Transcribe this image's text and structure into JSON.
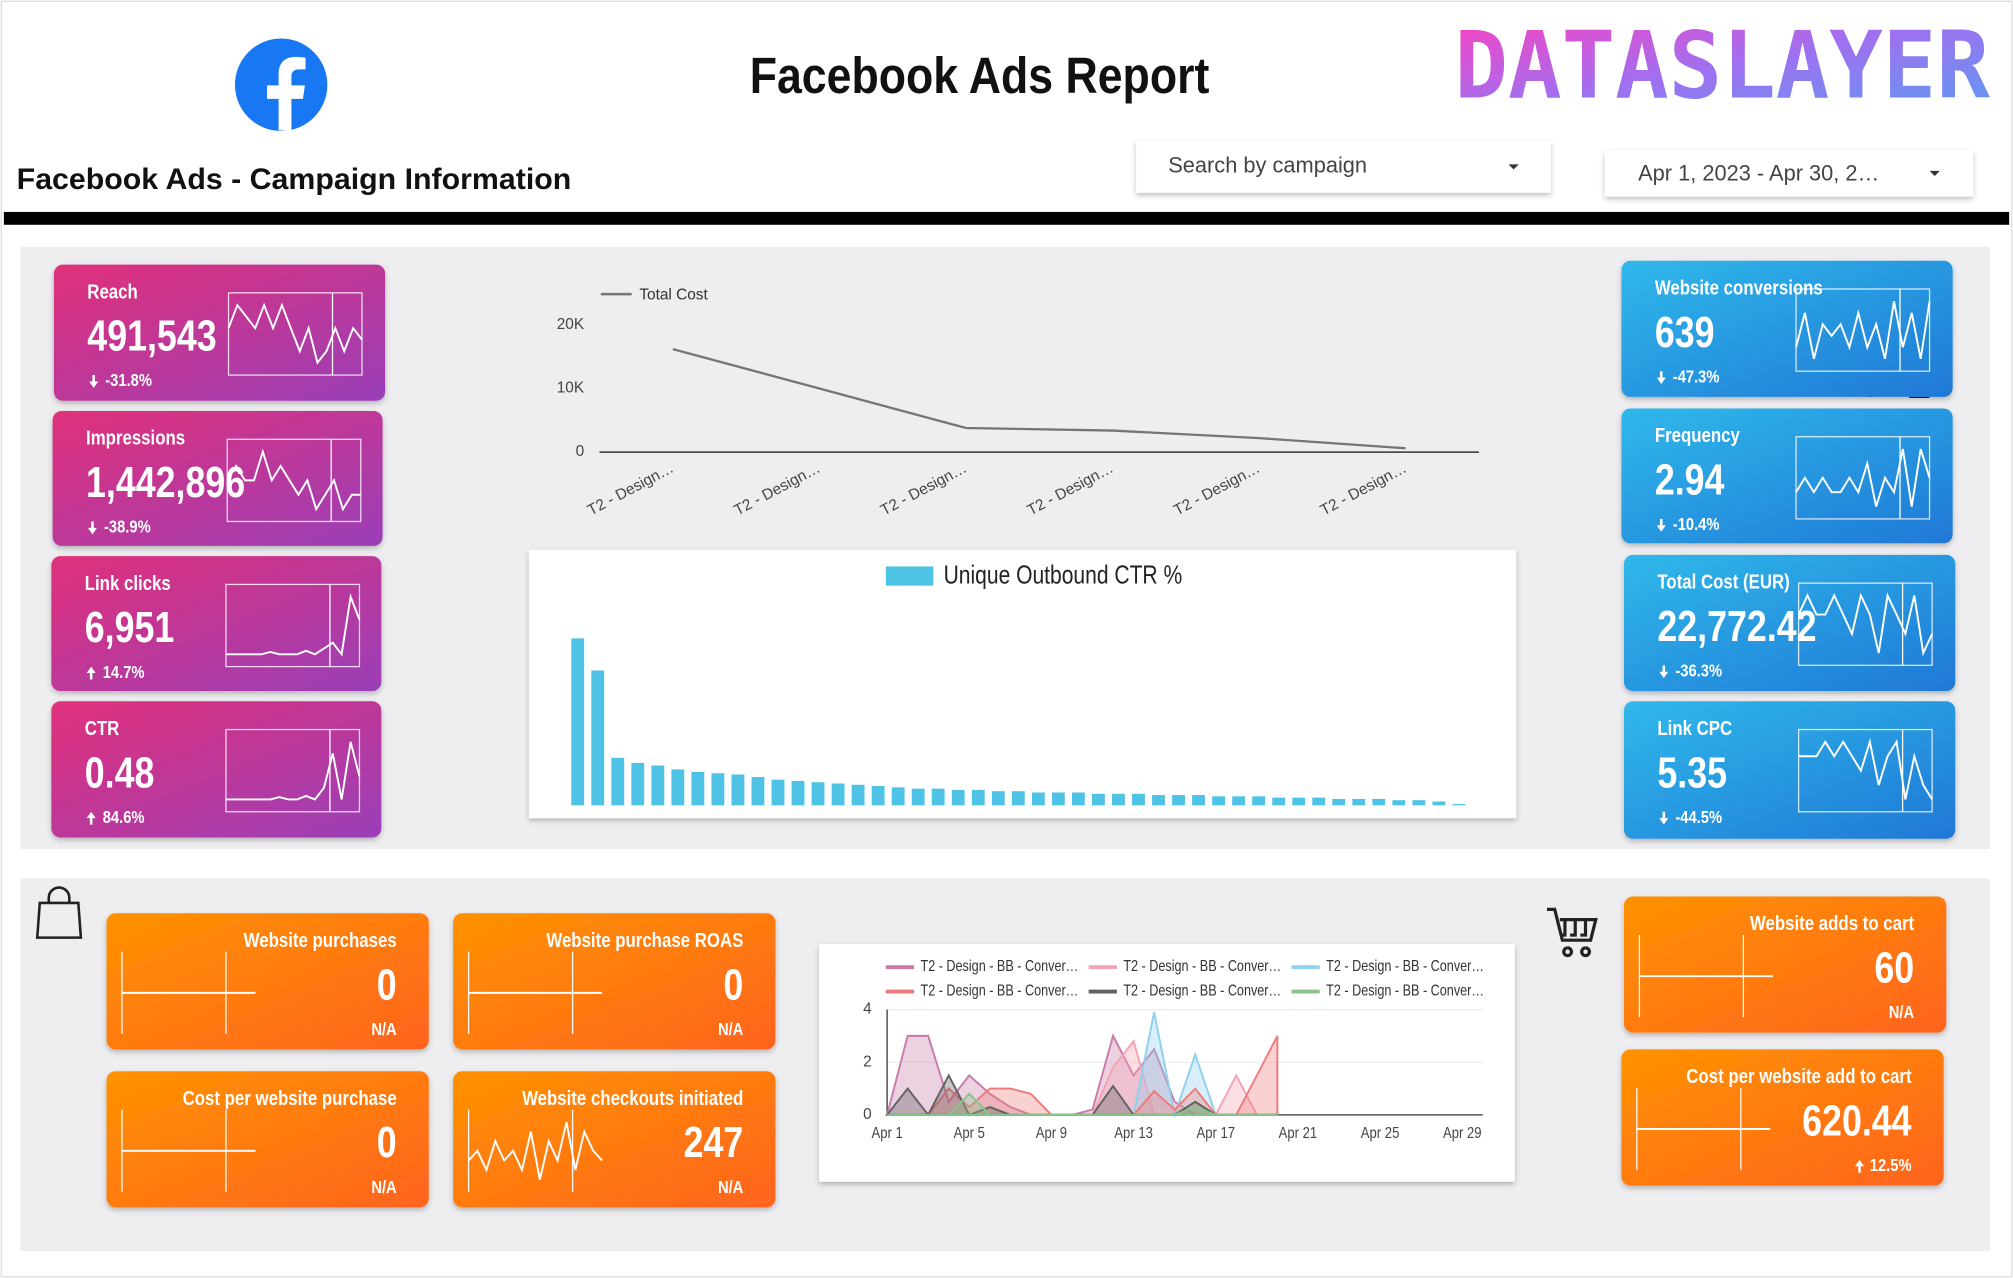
{
  "header": {
    "title": "Facebook Ads Report",
    "brand": "DATASLAYER",
    "subtitle": "Facebook Ads - Campaign Information",
    "campaign_filter": "Search by campaign",
    "date_filter": "Apr 1, 2023 - Apr 30, 2…"
  },
  "kpis": [
    {
      "name": "Reach",
      "value": "491,543",
      "change": "-31.8%",
      "sparkline": [
        5,
        6,
        5.5,
        5,
        6,
        5,
        6,
        5,
        4,
        5,
        3.5,
        4,
        5,
        4,
        5,
        4.5
      ]
    },
    {
      "name": "Impressions",
      "value": "1,442,896",
      "change": "-38.9%",
      "sparkline": [
        5,
        5.5,
        5,
        5,
        6,
        5,
        5.5,
        5,
        4.5,
        5,
        4,
        4.5,
        5,
        4,
        4.5,
        4.5
      ]
    },
    {
      "name": "Link clicks",
      "value": "6,951",
      "change": "14.7%",
      "sparkline": [
        2,
        2,
        2,
        2,
        2,
        2.2,
        2,
        2,
        2,
        2.3,
        2,
        2.5,
        3,
        2,
        7,
        5
      ]
    },
    {
      "name": "CTR",
      "value": "0.48",
      "change": "84.6%",
      "sparkline": [
        2,
        2,
        2,
        2,
        2,
        2,
        2.2,
        2,
        2,
        2.3,
        2,
        3,
        6,
        2,
        7,
        4
      ]
    },
    {
      "name": "Website conversions",
      "value": "639",
      "change": "-47.3%",
      "sparkline": [
        3,
        6,
        2,
        5,
        4,
        5,
        3,
        6,
        3,
        5,
        2,
        7,
        3,
        6,
        2,
        7
      ]
    },
    {
      "name": "Frequency",
      "value": "2.94",
      "change": "-10.4%",
      "sparkline": [
        4,
        5,
        4,
        5,
        4,
        4,
        5,
        4,
        6,
        3,
        5,
        4,
        7,
        3,
        7,
        5
      ]
    },
    {
      "name": "Total Cost (EUR)",
      "value": "22,772.42",
      "change": "-36.3%",
      "sparkline": [
        5,
        6,
        5,
        5,
        6,
        5,
        4,
        6,
        5,
        3,
        6,
        5,
        4,
        6,
        3,
        4
      ]
    },
    {
      "name": "Link CPC",
      "value": "5.35",
      "change": "-44.5%",
      "sparkline": [
        5,
        5,
        5,
        6,
        5,
        6,
        5,
        4,
        6,
        3,
        5,
        6,
        2,
        5,
        3,
        2
      ]
    },
    {
      "name": "Website purchases",
      "value": "0",
      "change": "N/A",
      "sparkline": [
        0,
        0,
        0,
        0,
        0,
        0,
        0,
        0,
        0,
        0,
        0,
        0,
        0,
        0,
        0,
        0
      ]
    },
    {
      "name": "Website purchase ROAS",
      "value": "0",
      "change": "N/A",
      "sparkline": [
        0,
        0,
        0,
        0,
        0,
        0,
        0,
        0,
        0,
        0,
        0,
        0,
        0,
        0,
        0,
        0
      ]
    },
    {
      "name": "Cost per website purchase",
      "value": "0",
      "change": "N/A",
      "sparkline": [
        0,
        0,
        0,
        0,
        0,
        0,
        0,
        0,
        0,
        0,
        0,
        0,
        0,
        0,
        0,
        0
      ]
    },
    {
      "name": "Website checkouts initiated",
      "value": "247",
      "change": "N/A",
      "sparkline": [
        3,
        4,
        2,
        5,
        3,
        4,
        2,
        6,
        1,
        5,
        3,
        7,
        2,
        6,
        4,
        3
      ]
    },
    {
      "name": "Website adds to cart",
      "value": "60",
      "change": "N/A",
      "sparkline": [
        0,
        0,
        0,
        0,
        0,
        0,
        0,
        0,
        0,
        0,
        0,
        0,
        0,
        0,
        0,
        0
      ]
    },
    {
      "name": "Cost per website add to cart",
      "value": "620.44",
      "change": "12.5%",
      "sparkline": [
        0,
        0,
        0,
        0,
        0,
        0,
        0,
        0,
        0,
        0,
        0,
        0,
        0,
        0,
        0,
        0
      ]
    }
  ],
  "chart_data": [
    {
      "type": "line",
      "categories": [
        "T2 - Design…",
        "T2 - Design…",
        "T2 - Design…",
        "T2 - Design…",
        "T2 - Design…",
        "T2 - Design…"
      ],
      "series": [
        {
          "name": "Total Cost",
          "color": "#757575",
          "values": [
            16200,
            10000,
            3800,
            3400,
            2200,
            600
          ]
        }
      ],
      "ylim": [
        0,
        20000
      ],
      "yticks": [
        0,
        {
          "value": 10000,
          "label": "10K"
        },
        {
          "value": 20000,
          "label": "20K"
        }
      ],
      "legend": "top-left"
    },
    {
      "type": "bar",
      "series": [
        {
          "name": "Unique Outbound CTR %",
          "color": "#4ec3e6",
          "values": [
            130,
            105,
            37,
            33,
            31,
            28,
            26,
            25,
            24,
            22,
            20,
            19,
            18,
            17,
            16,
            15,
            14,
            13,
            13,
            12,
            12,
            11,
            11,
            10,
            10,
            10,
            9,
            9,
            9,
            8,
            8,
            8,
            7,
            7,
            7,
            6,
            6,
            6,
            5,
            5,
            5,
            4,
            4,
            3,
            1
          ]
        }
      ],
      "legend": "top"
    },
    {
      "type": "area",
      "categories": [
        "Apr 1",
        null,
        null,
        null,
        "Apr 5",
        null,
        null,
        null,
        "Apr 9",
        null,
        null,
        null,
        "Apr 13",
        null,
        null,
        null,
        "Apr 17",
        null,
        null,
        null,
        "Apr 21",
        null,
        null,
        null,
        "Apr 25",
        null,
        null,
        null,
        "Apr 29",
        null
      ],
      "ylim": [
        0,
        4
      ],
      "yticks": [
        0,
        2,
        4
      ],
      "legend": "top",
      "series": [
        {
          "name": "T2 - Design - BB - Conver…",
          "color": "#c97aa8",
          "values": [
            0,
            3,
            3,
            0.5,
            1.5,
            0.8,
            0.3,
            0,
            0,
            0,
            0.2,
            3,
            1.5,
            2.5,
            0.5,
            0,
            0,
            0,
            0,
            0,
            null,
            null,
            null,
            null,
            null,
            null,
            null,
            null,
            null,
            null
          ]
        },
        {
          "name": "T2 - Design - BB - Conver…",
          "color": "#f4a3b4",
          "values": [
            0,
            0,
            0,
            0,
            0,
            0,
            0,
            0,
            0,
            0,
            0,
            1.8,
            2.8,
            0,
            0,
            0,
            0,
            1.5,
            0,
            0,
            null,
            null,
            null,
            null,
            null,
            null,
            null,
            null,
            null,
            null
          ]
        },
        {
          "name": "T2 - Design - BB - Conver…",
          "color": "#8fd0ee",
          "values": [
            0,
            0,
            0,
            0,
            0,
            0,
            0,
            0,
            0,
            0,
            0,
            0,
            0,
            3.9,
            0,
            2.3,
            0,
            0,
            0,
            0,
            null,
            null,
            null,
            null,
            null,
            null,
            null,
            null,
            null,
            null
          ]
        },
        {
          "name": "T2 - Design - BB - Conver…",
          "color": "#f07a7a",
          "values": [
            0,
            0,
            0,
            1,
            0.3,
            1,
            1,
            0.8,
            0,
            0,
            0,
            0,
            0,
            0.9,
            0.2,
            1,
            0,
            0,
            1.5,
            3,
            null,
            null,
            null,
            null,
            null,
            null,
            null,
            null,
            null,
            null
          ]
        },
        {
          "name": "T2 - Design - BB - Conver…",
          "color": "#616161",
          "values": [
            0,
            1,
            0,
            1.5,
            0,
            0.3,
            0,
            0,
            0,
            0,
            0,
            1.1,
            0,
            0,
            0,
            0.5,
            0,
            0,
            0,
            0,
            null,
            null,
            null,
            null,
            null,
            null,
            null,
            null,
            null,
            null
          ]
        },
        {
          "name": "T2 - Design - BB - Conver…",
          "color": "#8bc48a",
          "values": [
            0,
            0,
            0,
            0,
            0.8,
            0,
            0,
            0,
            0,
            0,
            0,
            0,
            0,
            0,
            0,
            0.3,
            0,
            0,
            0,
            0,
            null,
            null,
            null,
            null,
            null,
            null,
            null,
            null,
            null,
            null
          ]
        }
      ]
    }
  ]
}
